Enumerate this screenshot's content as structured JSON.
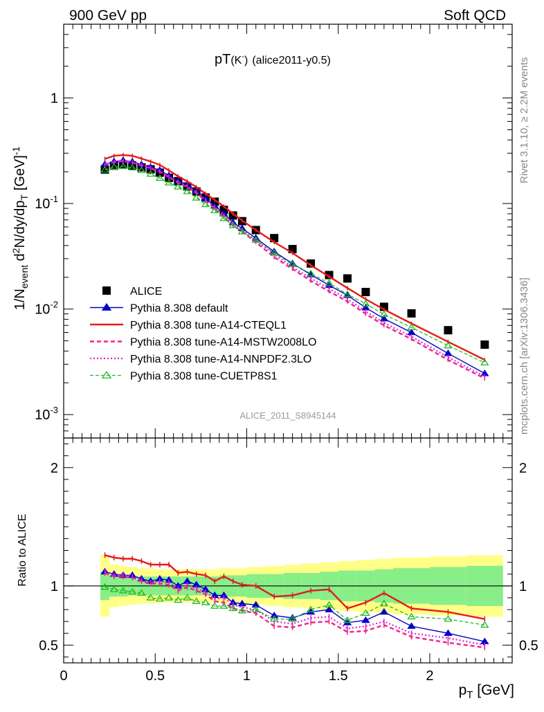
{
  "header": {
    "left": "900 GeV pp",
    "right": "Soft QCD"
  },
  "title": {
    "main": "pT",
    "sub": "(K",
    "sup": "-",
    "close": ")",
    "tag": "(alice2011-y0.5)"
  },
  "watermark": "ALICE_2011_S8945144",
  "side_text": {
    "rivet": "Rivet 3.1.10, ≥ 2.2M events",
    "mcplots": "mcplots.cern.ch [arXiv:1306.3436]"
  },
  "colors": {
    "data": "#000000",
    "default": "#0000cc",
    "cteql1": "#e41a1c",
    "mstw": "#f0208a",
    "nnpdf": "#e020d0",
    "cuetp8s1": "#22bb22",
    "band_outer": "#ffff88",
    "band_inner": "#88ee88"
  },
  "chart_data": [
    {
      "type": "scatter",
      "panel": "main",
      "ylabel": "1/N_event d²N/dy/dp_T [GeV]⁻¹",
      "ylog": true,
      "ylim": [
        0.0006,
        5
      ],
      "xlim": [
        0,
        2.45
      ],
      "yticks": [
        {
          "base": "10",
          "exp": "-3"
        },
        {
          "base": "10",
          "exp": "-2"
        },
        {
          "base": "10",
          "exp": "-1"
        },
        {
          "base": "1",
          "exp": ""
        }
      ],
      "x": [
        0.225,
        0.275,
        0.325,
        0.375,
        0.425,
        0.475,
        0.525,
        0.575,
        0.625,
        0.675,
        0.725,
        0.775,
        0.825,
        0.875,
        0.925,
        0.975,
        1.05,
        1.15,
        1.25,
        1.35,
        1.45,
        1.55,
        1.65,
        1.75,
        1.9,
        2.1,
        2.3
      ],
      "series": [
        {
          "name": "ALICE",
          "values": [
            0.21,
            0.228,
            0.234,
            0.229,
            0.22,
            0.211,
            0.196,
            0.175,
            0.163,
            0.145,
            0.13,
            0.114,
            0.104,
            0.087,
            0.077,
            0.068,
            0.056,
            0.047,
            0.037,
            0.027,
            0.021,
            0.0195,
            0.0145,
            0.0105,
            0.0091,
            0.0063,
            0.0046
          ]
        },
        {
          "name": "Pythia 8.308 default",
          "values": [
            0.235,
            0.25,
            0.256,
            0.249,
            0.234,
            0.22,
            0.207,
            0.184,
            0.163,
            0.151,
            0.131,
            0.111,
            0.095,
            0.08,
            0.066,
            0.058,
            0.047,
            0.035,
            0.027,
            0.0212,
            0.0168,
            0.0135,
            0.0103,
            0.0081,
            0.006,
            0.0038,
            0.00245
          ]
        },
        {
          "name": "Pythia 8.308 tune-A14-CTEQL1",
          "values": [
            0.265,
            0.283,
            0.288,
            0.283,
            0.267,
            0.25,
            0.232,
            0.206,
            0.181,
            0.162,
            0.143,
            0.124,
            0.108,
            0.094,
            0.08,
            0.069,
            0.056,
            0.043,
            0.034,
            0.026,
            0.0203,
            0.0158,
            0.0124,
            0.0099,
            0.0073,
            0.0049,
            0.0033
          ]
        },
        {
          "name": "Pythia 8.308 tune-A14-MSTW2008LO",
          "values": [
            0.233,
            0.247,
            0.252,
            0.244,
            0.229,
            0.215,
            0.2,
            0.177,
            0.157,
            0.143,
            0.125,
            0.106,
            0.09,
            0.075,
            0.062,
            0.054,
            0.043,
            0.031,
            0.024,
            0.0185,
            0.0147,
            0.0118,
            0.009,
            0.007,
            0.0052,
            0.0033,
            0.0022
          ]
        },
        {
          "name": "Pythia 8.308 tune-A14-NNPDF2.3LO",
          "values": [
            0.235,
            0.249,
            0.254,
            0.247,
            0.232,
            0.218,
            0.203,
            0.18,
            0.16,
            0.146,
            0.128,
            0.108,
            0.093,
            0.078,
            0.065,
            0.056,
            0.045,
            0.033,
            0.025,
            0.0196,
            0.0156,
            0.0125,
            0.0095,
            0.0074,
            0.0055,
            0.0035,
            0.0023
          ]
        },
        {
          "name": "Pythia 8.308 tune-CUETP8S1",
          "values": [
            0.208,
            0.222,
            0.225,
            0.218,
            0.206,
            0.19,
            0.174,
            0.157,
            0.144,
            0.13,
            0.113,
            0.098,
            0.086,
            0.072,
            0.062,
            0.054,
            0.045,
            0.034,
            0.0265,
            0.0217,
            0.0176,
            0.0138,
            0.0112,
            0.0089,
            0.0067,
            0.0045,
            0.0031
          ]
        }
      ]
    },
    {
      "type": "line",
      "panel": "ratio",
      "ylabel": "Ratio to ALICE",
      "xlabel": "p_T [GeV]",
      "ylim": [
        0.35,
        2.25
      ],
      "xlim": [
        0,
        2.45
      ],
      "yticks": [
        "0.5",
        "1",
        "2"
      ],
      "xticks": [
        "0",
        "0.5",
        "1",
        "1.5",
        "2"
      ],
      "bins": [
        [
          0.2,
          0.25
        ],
        [
          0.25,
          0.3
        ],
        [
          0.3,
          0.35
        ],
        [
          0.35,
          0.4
        ],
        [
          0.4,
          0.45
        ],
        [
          0.45,
          0.5
        ],
        [
          0.5,
          0.55
        ],
        [
          0.55,
          0.6
        ],
        [
          0.6,
          0.65
        ],
        [
          0.65,
          0.7
        ],
        [
          0.7,
          0.75
        ],
        [
          0.75,
          0.8
        ],
        [
          0.8,
          0.85
        ],
        [
          0.85,
          0.9
        ],
        [
          0.9,
          0.95
        ],
        [
          0.95,
          1.0
        ],
        [
          1.0,
          1.1
        ],
        [
          1.1,
          1.2
        ],
        [
          1.2,
          1.3
        ],
        [
          1.3,
          1.4
        ],
        [
          1.4,
          1.5
        ],
        [
          1.5,
          1.6
        ],
        [
          1.6,
          1.7
        ],
        [
          1.7,
          1.8
        ],
        [
          1.8,
          2.0
        ],
        [
          2.0,
          2.2
        ],
        [
          2.2,
          2.4
        ]
      ],
      "band_outer": [
        0.26,
        0.18,
        0.17,
        0.16,
        0.15,
        0.15,
        0.14,
        0.14,
        0.14,
        0.14,
        0.14,
        0.14,
        0.14,
        0.15,
        0.15,
        0.15,
        0.16,
        0.17,
        0.18,
        0.19,
        0.2,
        0.21,
        0.22,
        0.23,
        0.24,
        0.25,
        0.26
      ],
      "band_inner": [
        0.12,
        0.09,
        0.09,
        0.08,
        0.08,
        0.08,
        0.08,
        0.08,
        0.08,
        0.08,
        0.08,
        0.08,
        0.08,
        0.09,
        0.09,
        0.09,
        0.1,
        0.1,
        0.11,
        0.11,
        0.12,
        0.13,
        0.13,
        0.14,
        0.15,
        0.16,
        0.17
      ],
      "series": [
        {
          "name": "Pythia 8.308 default",
          "values": [
            1.12,
            1.1,
            1.09,
            1.09,
            1.06,
            1.04,
            1.06,
            1.05,
            1.0,
            1.04,
            1.01,
            0.97,
            0.92,
            0.92,
            0.86,
            0.85,
            0.84,
            0.75,
            0.73,
            0.78,
            0.8,
            0.69,
            0.71,
            0.78,
            0.66,
            0.6,
            0.53
          ]
        },
        {
          "name": "Pythia 8.308 tune-A14-CTEQL1",
          "values": [
            1.26,
            1.24,
            1.23,
            1.23,
            1.21,
            1.18,
            1.18,
            1.18,
            1.11,
            1.12,
            1.1,
            1.09,
            1.04,
            1.08,
            1.04,
            1.01,
            1.0,
            0.91,
            0.92,
            0.96,
            0.97,
            0.81,
            0.86,
            0.94,
            0.81,
            0.78,
            0.72
          ]
        },
        {
          "name": "Pythia 8.308 tune-A14-MSTW2008LO",
          "values": [
            1.11,
            1.08,
            1.08,
            1.07,
            1.04,
            1.02,
            1.02,
            1.01,
            0.96,
            0.99,
            0.96,
            0.93,
            0.87,
            0.86,
            0.81,
            0.79,
            0.77,
            0.66,
            0.65,
            0.69,
            0.7,
            0.61,
            0.62,
            0.67,
            0.57,
            0.52,
            0.48
          ]
        },
        {
          "name": "Pythia 8.308 tune-A14-NNPDF2.3LO",
          "values": [
            1.12,
            1.09,
            1.09,
            1.08,
            1.05,
            1.03,
            1.04,
            1.03,
            0.98,
            1.01,
            0.98,
            0.95,
            0.89,
            0.9,
            0.84,
            0.82,
            0.8,
            0.7,
            0.68,
            0.73,
            0.74,
            0.64,
            0.66,
            0.7,
            0.6,
            0.56,
            0.5
          ]
        },
        {
          "name": "Pythia 8.308 tune-CUETP8S1",
          "values": [
            0.99,
            0.97,
            0.96,
            0.95,
            0.94,
            0.9,
            0.89,
            0.9,
            0.88,
            0.9,
            0.87,
            0.86,
            0.83,
            0.83,
            0.81,
            0.79,
            0.8,
            0.72,
            0.72,
            0.8,
            0.84,
            0.71,
            0.77,
            0.85,
            0.74,
            0.72,
            0.67
          ]
        }
      ]
    }
  ]
}
